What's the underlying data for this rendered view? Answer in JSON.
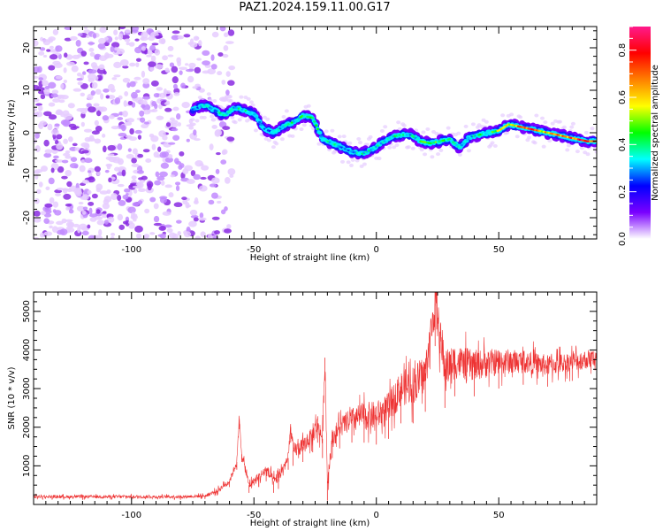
{
  "figure_title": "PAZ1.2024.159.11.00.G17",
  "chart_data": [
    {
      "type": "heatmap",
      "title": "",
      "xlabel": "Height of straight line (km)",
      "ylabel": "Frequency (Hz)",
      "xlim": [
        -140,
        90
      ],
      "ylim": [
        -25,
        25
      ],
      "xticks": [
        -100,
        -50,
        0,
        50
      ],
      "yticks": [
        -20,
        -10,
        0,
        10,
        20
      ],
      "colorbar": {
        "label": "Normalized spectral amplitude",
        "range": [
          0,
          0.9
        ],
        "ticks": [
          0.0,
          0.2,
          0.4,
          0.6,
          0.8
        ],
        "colors": [
          "#ffffff",
          "#7a00ff",
          "#0000ff",
          "#00ffff",
          "#00ff00",
          "#ffff00",
          "#ff8000",
          "#ff0000",
          "#ff1a8c"
        ]
      },
      "noise_region_x": [
        -140,
        -65
      ],
      "ridge": {
        "x": [
          -75,
          -70,
          -65,
          -62,
          -58,
          -55,
          -50,
          -46,
          -42,
          -38,
          -34,
          -30,
          -26,
          -22,
          -18,
          -14,
          -10,
          -6,
          -2,
          2,
          6,
          10,
          14,
          18,
          22,
          26,
          30,
          34,
          38,
          42,
          46,
          50,
          54,
          58,
          62,
          66,
          70,
          74,
          78,
          82,
          86,
          90
        ],
        "y": [
          5.5,
          6.5,
          5.0,
          4.0,
          6.0,
          5.5,
          4.5,
          1.0,
          0.0,
          1.5,
          2.5,
          4.0,
          3.5,
          -1.5,
          -2.5,
          -3.5,
          -4.5,
          -5.0,
          -4.0,
          -2.5,
          -1.0,
          -0.5,
          -0.5,
          -2.0,
          -2.5,
          -2.0,
          -1.5,
          -3.5,
          -1.0,
          -0.5,
          0.0,
          0.5,
          2.0,
          1.5,
          1.0,
          0.5,
          0.0,
          -0.5,
          -1.0,
          -1.5,
          -2.0,
          -2.0
        ],
        "amplitude": [
          0.3,
          0.35,
          0.35,
          0.4,
          0.35,
          0.4,
          0.35,
          0.3,
          0.35,
          0.4,
          0.4,
          0.45,
          0.45,
          0.4,
          0.4,
          0.35,
          0.35,
          0.4,
          0.4,
          0.35,
          0.4,
          0.4,
          0.35,
          0.45,
          0.5,
          0.45,
          0.4,
          0.35,
          0.35,
          0.4,
          0.45,
          0.55,
          0.6,
          0.75,
          0.8,
          0.75,
          0.65,
          0.7,
          0.75,
          0.8,
          0.85,
          0.7
        ]
      }
    },
    {
      "type": "line",
      "title": "",
      "xlabel": "Height of straight line (km)",
      "ylabel": "SNR (10 * v/v)",
      "xlim": [
        -140,
        90
      ],
      "ylim": [
        0,
        5500
      ],
      "xticks": [
        -100,
        -50,
        0,
        50
      ],
      "yticks": [
        1000,
        2000,
        3000,
        4000,
        5000
      ],
      "series": [
        {
          "color": "#ee3333",
          "x": [
            -140,
            -120,
            -100,
            -80,
            -70,
            -65,
            -60,
            -57,
            -56,
            -55,
            -52,
            -48,
            -45,
            -42,
            -40,
            -36,
            -35,
            -34,
            -30,
            -26,
            -24,
            -22,
            -21,
            -20,
            -18,
            -15,
            -10,
            -5,
            0,
            5,
            10,
            15,
            20,
            24,
            28,
            32,
            40,
            50,
            60,
            70,
            80,
            90
          ],
          "y": [
            200,
            200,
            200,
            200,
            220,
            350,
            600,
            1100,
            2200,
            1300,
            500,
            700,
            900,
            600,
            700,
            1200,
            2000,
            1400,
            1500,
            1800,
            2100,
            1700,
            3800,
            600,
            1700,
            2000,
            2200,
            2300,
            2300,
            2500,
            3000,
            3100,
            3400,
            5200,
            3500,
            3700,
            3600,
            3700,
            3700,
            3600,
            3700,
            3800
          ],
          "noise_amplitude": [
            80,
            80,
            80,
            80,
            80,
            120,
            150,
            200,
            250,
            200,
            200,
            250,
            300,
            300,
            300,
            300,
            400,
            400,
            400,
            450,
            500,
            500,
            500,
            500,
            500,
            550,
            600,
            700,
            750,
            800,
            900,
            1000,
            1000,
            1100,
            1000,
            900,
            800,
            700,
            600,
            550,
            500,
            500
          ]
        }
      ]
    }
  ]
}
